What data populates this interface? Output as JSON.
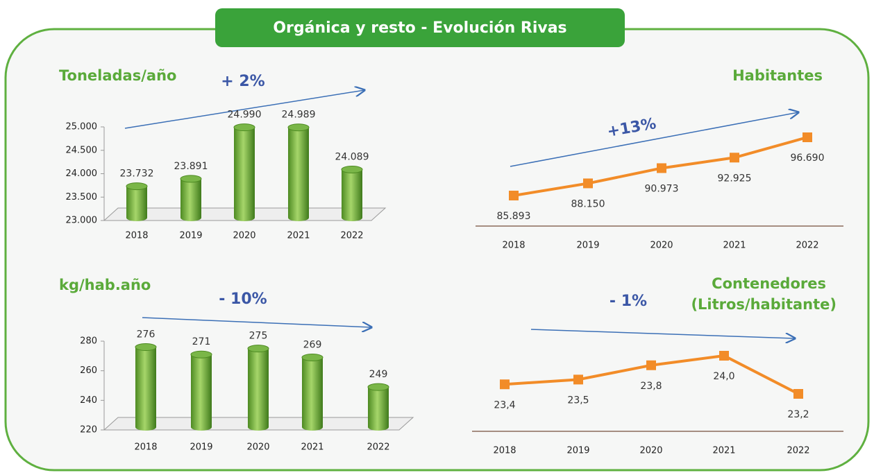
{
  "title": "Orgánica y resto - Evolución Rivas",
  "chart_data": [
    {
      "type": "bar",
      "title": "Toneladas/año",
      "annotation": "+ 2%",
      "categories": [
        "2018",
        "2019",
        "2020",
        "2021",
        "2022"
      ],
      "values": [
        23732,
        23891,
        24990,
        24989,
        24089
      ],
      "value_labels": [
        "23.732",
        "23.891",
        "24.990",
        "24.989",
        "24.089"
      ],
      "color": "#7ab648",
      "ylim": [
        23000,
        25000
      ],
      "yticks": [
        {
          "value": 23000,
          "label": "23.000"
        },
        {
          "value": 23500,
          "label": "23.500"
        },
        {
          "value": 24000,
          "label": "24.000"
        },
        {
          "value": 24500,
          "label": "24.500"
        },
        {
          "value": 25000,
          "label": "25.000"
        }
      ]
    },
    {
      "type": "line",
      "title": "Habitantes",
      "annotation": "+13%",
      "categories": [
        "2018",
        "2019",
        "2020",
        "2021",
        "2022"
      ],
      "values": [
        85893,
        88150,
        90973,
        92925,
        96690
      ],
      "value_labels": [
        "85.893",
        "88.150",
        "90.973",
        "92.925",
        "96.690"
      ],
      "color": "#f28c28"
    },
    {
      "type": "bar",
      "title": "kg/hab.año",
      "annotation": "- 10%",
      "categories": [
        "2018",
        "2019",
        "2020",
        "2021",
        "2022"
      ],
      "values": [
        276,
        271,
        275,
        269,
        249
      ],
      "color": "#7ab648",
      "ylim": [
        220,
        280
      ],
      "yticks": [
        220,
        240,
        260,
        280
      ]
    },
    {
      "type": "line",
      "title": "Contenedores",
      "subtitle": "(Litros/habitante)",
      "annotation": "- 1%",
      "categories": [
        "2018",
        "2019",
        "2020",
        "2021",
        "2022"
      ],
      "values": [
        23.4,
        23.5,
        23.8,
        24.0,
        23.2
      ],
      "value_labels": [
        "23,4",
        "23,5",
        "23,8",
        "24,0",
        "23,2"
      ],
      "color": "#f28c28"
    }
  ]
}
